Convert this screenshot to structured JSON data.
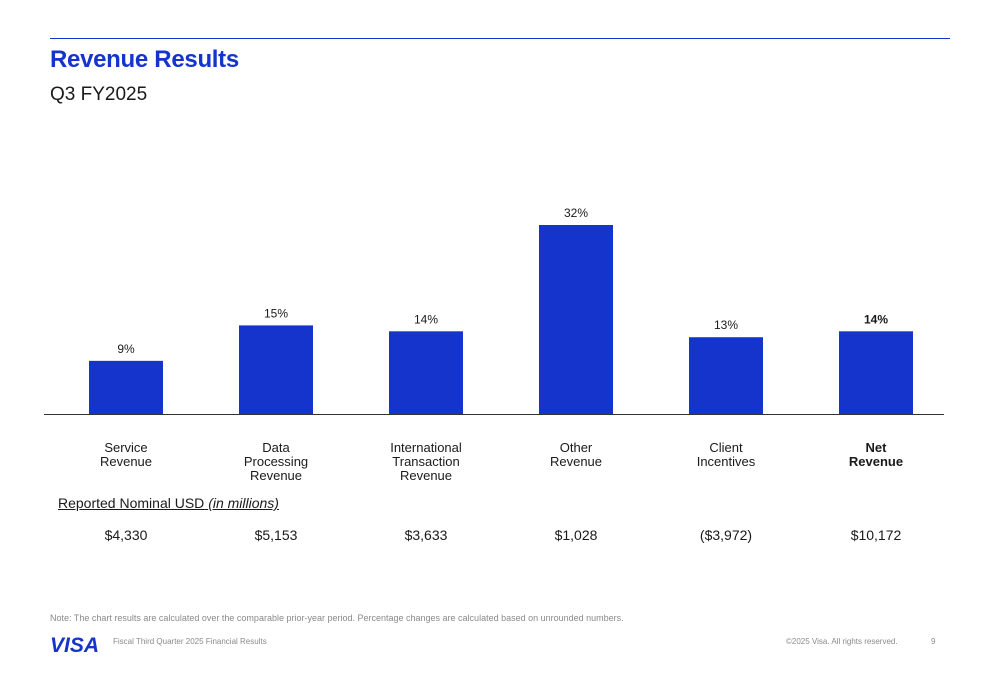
{
  "header": {
    "title": "Revenue Results",
    "subtitle": "Q3 FY2025"
  },
  "chart_data": {
    "type": "bar",
    "categories": [
      "Service\nRevenue",
      "Data\nProcessing\nRevenue",
      "International\nTransaction\nRevenue",
      "Other\nRevenue",
      "Client\nIncentives",
      "Net\nRevenue"
    ],
    "values": [
      9,
      15,
      14,
      32,
      13,
      14
    ],
    "value_labels": [
      "9%",
      "15%",
      "14%",
      "32%",
      "13%",
      "14%"
    ],
    "bold_index": 5,
    "bar_color": "#1434cb",
    "ylim": [
      0,
      32
    ],
    "grid": false,
    "title": "",
    "xlabel": "",
    "ylabel": ""
  },
  "reported": {
    "heading": "Reported Nominal USD",
    "heading_unit": "(in millions)",
    "values": [
      "$4,330",
      "$5,153",
      "$3,633",
      "$1,028",
      "($3,972)",
      "$10,172"
    ]
  },
  "note": "Note: The chart results are calculated over the comparable prior-year period. Percentage changes are calculated based on unrounded numbers.",
  "footer": {
    "logo_text": "VISA",
    "left_text": "Fiscal Third Quarter 2025 Financial Results",
    "copyright": "©2025 Visa. All rights reserved.",
    "page_number": "9"
  },
  "colors": {
    "brand_blue": "#1434cb",
    "muted_gray": "#8a8a8a"
  }
}
